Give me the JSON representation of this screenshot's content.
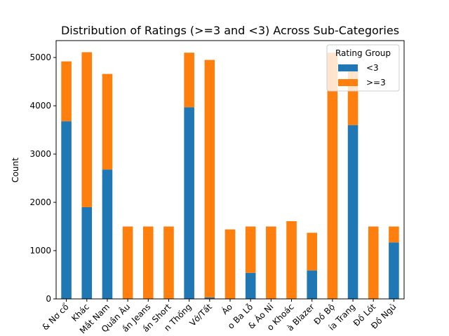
{
  "chart_data": {
    "type": "bar",
    "stacked": true,
    "title": "Distribution of Ratings (>=3 and <3) Across Sub-Categories",
    "xlabel": "",
    "ylabel": "Count",
    "ylim": [
      0,
      5350
    ],
    "yticks": [
      0,
      1000,
      2000,
      3000,
      4000,
      5000
    ],
    "categories": [
      "& Nơ cổ",
      "Khác",
      "Mắt Nam",
      "Quần Âu",
      "ần Jeans",
      "ần Short",
      "n Thống",
      "Vớ/Tất",
      "Áo",
      "o Ba Lỗ",
      "& Áo Nỉ",
      "o Khoác",
      "à Blazer",
      "Đồ Bộ",
      "ía Trang",
      "Đồ Lót",
      "Đồ Ngủ"
    ],
    "series": [
      {
        "name": "<3",
        "color": "#1f77b4",
        "values": [
          3680,
          1900,
          2680,
          0,
          0,
          0,
          3970,
          30,
          0,
          540,
          0,
          0,
          590,
          0,
          3600,
          0,
          1170
        ]
      },
      {
        "name": ">=3",
        "color": "#ff7f0e",
        "values": [
          1240,
          3210,
          1980,
          1500,
          1500,
          1500,
          1130,
          4920,
          1440,
          960,
          1500,
          1610,
          780,
          5100,
          1200,
          1500,
          330
        ]
      }
    ],
    "legend": {
      "title": "Rating Group",
      "position": "top-right"
    },
    "grid": false
  }
}
